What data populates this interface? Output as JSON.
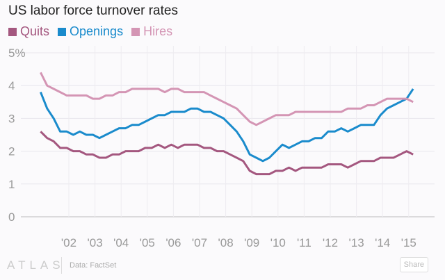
{
  "chart_data": {
    "type": "line",
    "title": "US labor force turnover rates",
    "xlabel": "",
    "ylabel": "",
    "ylim": [
      0,
      5
    ],
    "y_ticks": [
      "0",
      "1",
      "2",
      "3",
      "4",
      "5%"
    ],
    "x_ticks": [
      "'02",
      "'03",
      "'04",
      "'05",
      "'06",
      "'07",
      "'08",
      "'09",
      "'10",
      "'11",
      "'12",
      "'13",
      "'14",
      "'15"
    ],
    "x_start": 2001.0,
    "x_step": 0.25,
    "grid": true,
    "legend": "top-left",
    "series": [
      {
        "name": "Quits",
        "color": "#a4577f",
        "values": [
          2.6,
          2.4,
          2.3,
          2.1,
          2.1,
          2.0,
          2.0,
          1.9,
          1.9,
          1.8,
          1.8,
          1.9,
          1.9,
          2.0,
          2.0,
          2.0,
          2.1,
          2.1,
          2.2,
          2.1,
          2.2,
          2.1,
          2.2,
          2.2,
          2.2,
          2.1,
          2.1,
          2.0,
          2.0,
          1.9,
          1.8,
          1.7,
          1.4,
          1.3,
          1.3,
          1.3,
          1.4,
          1.4,
          1.5,
          1.4,
          1.5,
          1.5,
          1.5,
          1.5,
          1.6,
          1.6,
          1.6,
          1.5,
          1.6,
          1.7,
          1.7,
          1.7,
          1.8,
          1.8,
          1.8,
          1.9,
          2.0,
          1.9
        ]
      },
      {
        "name": "Openings",
        "color": "#1a8bcc",
        "values": [
          3.8,
          3.3,
          3.0,
          2.6,
          2.6,
          2.5,
          2.6,
          2.5,
          2.5,
          2.4,
          2.5,
          2.6,
          2.7,
          2.7,
          2.8,
          2.8,
          2.9,
          3.0,
          3.1,
          3.1,
          3.2,
          3.2,
          3.2,
          3.3,
          3.3,
          3.2,
          3.2,
          3.1,
          3.0,
          2.8,
          2.6,
          2.3,
          1.9,
          1.8,
          1.7,
          1.8,
          2.0,
          2.2,
          2.1,
          2.2,
          2.3,
          2.3,
          2.4,
          2.4,
          2.6,
          2.6,
          2.7,
          2.6,
          2.7,
          2.8,
          2.8,
          2.8,
          3.1,
          3.3,
          3.4,
          3.5,
          3.6,
          3.9
        ]
      },
      {
        "name": "Hires",
        "color": "#d495b4",
        "values": [
          4.4,
          4.0,
          3.9,
          3.8,
          3.7,
          3.7,
          3.7,
          3.7,
          3.6,
          3.6,
          3.7,
          3.7,
          3.8,
          3.8,
          3.9,
          3.9,
          3.9,
          3.9,
          3.9,
          3.8,
          3.9,
          3.9,
          3.8,
          3.8,
          3.8,
          3.8,
          3.7,
          3.6,
          3.5,
          3.4,
          3.3,
          3.1,
          2.9,
          2.8,
          2.9,
          3.0,
          3.1,
          3.1,
          3.1,
          3.2,
          3.2,
          3.2,
          3.2,
          3.2,
          3.2,
          3.2,
          3.2,
          3.3,
          3.3,
          3.3,
          3.4,
          3.4,
          3.5,
          3.6,
          3.6,
          3.6,
          3.6,
          3.5
        ]
      }
    ]
  },
  "footer": {
    "logo": "ATLAS",
    "source": "Data: FactSet",
    "share_label": "Share"
  }
}
